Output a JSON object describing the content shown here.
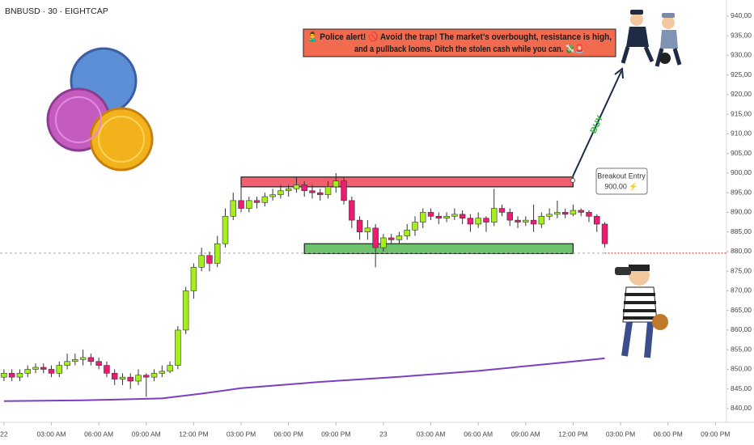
{
  "chart_data": {
    "type": "candlestick",
    "title": "BNBUSD · 30 · EIGHTCAP",
    "up_color": "#a5ef1c",
    "down_color": "#ef1a72",
    "xlim": [
      -0.5,
      91.4
    ],
    "ylim": [
      836.9,
      944.1
    ],
    "grid": false,
    "xticks": [
      {
        "value": 0,
        "label": "22"
      },
      {
        "value": 6,
        "label": "03:00 AM"
      },
      {
        "value": 12,
        "label": "06:00 AM"
      },
      {
        "value": 18,
        "label": "09:00 AM"
      },
      {
        "value": 24,
        "label": "12:00 PM"
      },
      {
        "value": 30,
        "label": "03:00 PM"
      },
      {
        "value": 36,
        "label": "06:00 PM"
      },
      {
        "value": 42,
        "label": "09:00 PM"
      },
      {
        "value": 48,
        "label": "23"
      },
      {
        "value": 54,
        "label": "03:00 AM"
      },
      {
        "value": 60,
        "label": "06:00 AM"
      },
      {
        "value": 66,
        "label": "09:00 AM"
      },
      {
        "value": 72,
        "label": "12:00 PM"
      },
      {
        "value": 78,
        "label": "03:00 PM"
      },
      {
        "value": 84,
        "label": "06:00 PM"
      },
      {
        "value": 90,
        "label": "09:00 PM"
      }
    ],
    "yticks": [
      {
        "value": 840,
        "label": "840,00"
      },
      {
        "value": 845,
        "label": "845,00"
      },
      {
        "value": 850,
        "label": "850,00"
      },
      {
        "value": 855,
        "label": "855,00"
      },
      {
        "value": 860,
        "label": "860,00"
      },
      {
        "value": 865,
        "label": "865,00"
      },
      {
        "value": 870,
        "label": "870,00"
      },
      {
        "value": 875,
        "label": "875,00"
      },
      {
        "value": 880,
        "label": "880,00"
      },
      {
        "value": 885,
        "label": "885,00"
      },
      {
        "value": 890,
        "label": "890,00"
      },
      {
        "value": 895,
        "label": "895,00"
      },
      {
        "value": 900,
        "label": "900,00"
      },
      {
        "value": 905,
        "label": "905,00"
      },
      {
        "value": 910,
        "label": "910,00"
      },
      {
        "value": 915,
        "label": "915,00"
      },
      {
        "value": 920,
        "label": "920,00"
      },
      {
        "value": 925,
        "label": "925,00"
      },
      {
        "value": 930,
        "label": "930,00"
      },
      {
        "value": 935,
        "label": "935,00"
      },
      {
        "value": 940,
        "label": "940,00"
      }
    ],
    "open": [
      848,
      849,
      848,
      849,
      850,
      850.5,
      850,
      849,
      851,
      852,
      852.5,
      853,
      852,
      851,
      849,
      847.5,
      848,
      847,
      848.5,
      848,
      849,
      849.5,
      851,
      860,
      870,
      876,
      879,
      877,
      882,
      889,
      893,
      891,
      893,
      892.5,
      894,
      894.5,
      895.5,
      896,
      897,
      895.5,
      895,
      894.5,
      896.5,
      898,
      893,
      888,
      885,
      886,
      881,
      883.5,
      883,
      884,
      885.5,
      887.5,
      890,
      889,
      888.5,
      889,
      889.5,
      888.5,
      887,
      888.5,
      887.5,
      891,
      890,
      888,
      887.5,
      888,
      887,
      889,
      889.5,
      890,
      889.5,
      890.5,
      890,
      889,
      887
    ],
    "high": [
      850,
      850,
      850,
      851,
      851.5,
      851.5,
      851,
      852,
      854,
      854,
      855,
      854,
      853,
      852,
      850,
      849,
      849,
      850,
      849,
      850,
      851,
      852,
      861,
      871,
      877,
      881,
      880,
      884,
      891,
      895,
      897,
      894,
      894,
      895,
      896,
      897,
      897,
      899,
      898,
      897,
      896,
      898,
      900,
      899,
      894,
      889,
      888,
      887,
      884.5,
      884.5,
      885,
      887,
      889,
      891,
      891,
      890,
      890,
      891,
      890.5,
      889.5,
      890,
      889,
      896,
      892,
      891,
      889,
      889,
      892,
      890,
      891,
      893,
      891,
      892,
      891,
      890.5,
      889.5,
      887.5
    ],
    "low": [
      847,
      847,
      847,
      848,
      849,
      849,
      848,
      848,
      850,
      851,
      851,
      851,
      850,
      848,
      846,
      846,
      845,
      846,
      843,
      847,
      848,
      849,
      850,
      859,
      868,
      875,
      875,
      876,
      881,
      888,
      890,
      890,
      891,
      891.5,
      893,
      893.5,
      894,
      895,
      894,
      893.5,
      893,
      893.5,
      895,
      892,
      886,
      883,
      883,
      876,
      880,
      882,
      882,
      883,
      884,
      886,
      888,
      887,
      887.5,
      888,
      887,
      885,
      886,
      885,
      886.5,
      889,
      886.5,
      886,
      886.5,
      885,
      886,
      888,
      888.5,
      888.5,
      889,
      889,
      887.5,
      885,
      881
    ],
    "close": [
      849,
      848,
      849,
      850,
      850.5,
      850,
      849,
      851,
      852,
      852.5,
      853,
      852,
      851,
      849,
      847.5,
      848,
      847,
      848.5,
      848,
      849,
      849.5,
      851,
      860,
      870,
      876,
      879,
      877,
      882,
      889,
      893,
      891,
      893,
      892.5,
      894,
      894.5,
      895.5,
      896,
      897,
      895.5,
      895,
      894.5,
      896.5,
      898,
      893,
      888,
      885,
      886,
      881,
      883.5,
      883,
      884,
      885.5,
      887.5,
      890,
      889,
      888.5,
      889,
      889.5,
      888.5,
      887,
      888.5,
      887.5,
      891,
      890,
      888,
      887.5,
      888,
      887,
      889,
      889.5,
      890,
      889.5,
      890.5,
      890,
      889,
      887,
      882
    ],
    "ma": {
      "color": "#7b3fc4",
      "x": [
        0,
        10,
        20,
        25,
        30,
        40,
        50,
        60,
        70,
        76
      ],
      "values": [
        841.9,
        842.1,
        842.6,
        843.8,
        845.2,
        846.8,
        848.1,
        849.6,
        851.6,
        852.8
      ]
    },
    "price_line": 879.6,
    "zones": [
      {
        "ylim": [
          896.5,
          899
        ],
        "xlim": [
          30,
          72
        ],
        "color": "#f0606e"
      },
      {
        "ylim": [
          879.5,
          882
        ],
        "xlim": [
          38,
          72
        ],
        "color": "#6cc36c"
      }
    ],
    "callout": [
      "🙎‍♂️ Police alert! 🚫 Avoid the trap! The market’s overbought, resistance is high,",
      "and a pullback looms. Ditch the stolen cash while you can. 💸🚨"
    ],
    "entry_label": [
      "Breakout Entry",
      "900.00 ⚡"
    ],
    "arrow_label": "BUY"
  }
}
